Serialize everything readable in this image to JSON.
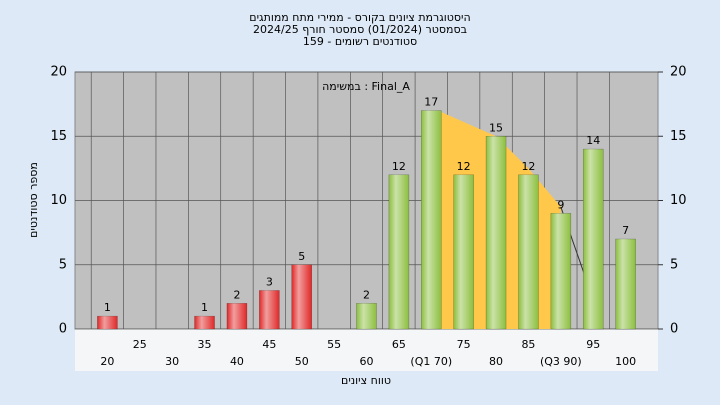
{
  "chart_data": {
    "type": "bar",
    "title": "היסטוגרמת ציונים בקורס - ממירי מתח ממותגים",
    "subtitle": [
      "בסמסטר  (01/2024)  סמסטר חורף 2024/25",
      "סטודנטים רשומים - 159"
    ],
    "annotation": "במשימה : Final_A",
    "x_label": "טווח ציונים",
    "y_label": "מספר סטודנטים",
    "categories": [
      "20",
      "25",
      "30",
      "35",
      "40",
      "45",
      "50",
      "55",
      "60",
      "65",
      "(Q1 70)",
      "75",
      "80",
      "85",
      "(Q3 90)",
      "95",
      "100"
    ],
    "values": [
      1,
      null,
      null,
      1,
      2,
      3,
      5,
      null,
      2,
      12,
      17,
      12,
      15,
      12,
      9,
      14,
      7
    ],
    "bar_colors": [
      "#e02828",
      "#e02828",
      "#e02828",
      "#e02828",
      "#e02828",
      "#e02828",
      "#e02828",
      "#e02828",
      "#8cbf3f",
      "#8cbf3f",
      "#8cbf3f",
      "#8cbf3f",
      "#8cbf3f",
      "#8cbf3f",
      "#8cbf3f",
      "#8cbf3f",
      "#8cbf3f"
    ],
    "area": {
      "color": "#ffc84a",
      "x": [
        71,
        80,
        85,
        90
      ],
      "values": [
        17,
        15,
        12.5,
        9.5
      ]
    },
    "line": {
      "color": "#333333",
      "x": [
        90,
        94.5
      ],
      "values": [
        9.5,
        3
      ]
    },
    "ylim": [
      0,
      20
    ],
    "yticks": [
      0,
      5,
      10,
      15,
      20
    ],
    "y2ticks": [
      0,
      5,
      10,
      15,
      20
    ],
    "grid": true
  }
}
